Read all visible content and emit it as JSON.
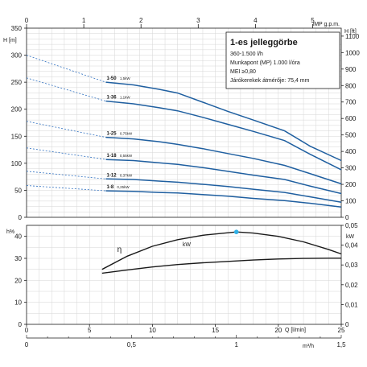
{
  "chart_data": [
    {
      "type": "line",
      "title": "1-es jelleggörbe",
      "info_lines": [
        "360-1.500 l/h",
        "Munkapont (MP) 1.000 l/óra",
        "MEI ≥0,80",
        "Járókerekek átmérője: 75,4 mm"
      ],
      "axes": {
        "top_label": "IMP g.p.m.",
        "top_ticks": [
          "0",
          "1",
          "2",
          "3",
          "4",
          "5"
        ],
        "left_label": "H [m]",
        "left_ticks": [
          "0",
          "50",
          "100",
          "150",
          "200",
          "250",
          "300",
          "350"
        ],
        "left_range": [
          0,
          350
        ],
        "right_label": "H [ft]",
        "right_ticks": [
          "0",
          "100",
          "200",
          "300",
          "400",
          "500",
          "600",
          "700",
          "800",
          "900",
          "1000",
          "1100"
        ],
        "x_range": [
          0,
          25
        ]
      },
      "series": [
        {
          "name": "1-50",
          "power": "1,5kW",
          "x": [
            6.3,
            8.5,
            10.5,
            12.0,
            14.0,
            16.0,
            18.0,
            20.5,
            22.5,
            25.0
          ],
          "values": [
            250,
            245,
            237,
            230,
            213,
            196,
            180,
            160,
            132,
            105
          ]
        },
        {
          "name": "1-36",
          "power": "1,1kW",
          "x": [
            6.3,
            8.5,
            10.5,
            12.0,
            14.0,
            16.0,
            18.0,
            20.5,
            22.5,
            25.0
          ],
          "values": [
            215,
            210,
            203,
            197,
            185,
            172,
            159,
            142,
            117,
            88
          ]
        },
        {
          "name": "1-25",
          "power": "0,75kW",
          "x": [
            6.3,
            8.5,
            10.5,
            12.0,
            14.0,
            16.0,
            18.0,
            20.5,
            22.5,
            25.0
          ],
          "values": [
            148,
            145,
            140,
            135,
            127,
            118,
            109,
            96,
            81,
            62
          ]
        },
        {
          "name": "1-18",
          "power": "0,55kW",
          "x": [
            6.3,
            8.5,
            10.5,
            12.0,
            14.0,
            16.0,
            18.0,
            20.5,
            22.5,
            25.0
          ],
          "values": [
            107,
            105,
            101,
            98,
            92,
            85,
            78,
            70,
            58,
            44
          ]
        },
        {
          "name": "1-12",
          "power": "0,37kW",
          "x": [
            6.3,
            8.5,
            10.5,
            12.0,
            14.0,
            16.0,
            18.0,
            20.5,
            22.5,
            25.0
          ],
          "values": [
            71,
            70,
            67,
            65,
            61,
            57,
            52,
            46,
            38,
            28
          ]
        },
        {
          "name": "1-8",
          "power": "0,25kW",
          "x": [
            6.3,
            8.5,
            10.5,
            12.0,
            14.0,
            16.0,
            18.0,
            20.5,
            22.5,
            25.0
          ],
          "values": [
            49,
            48,
            46,
            45,
            42,
            39,
            35,
            31,
            26,
            19
          ]
        }
      ]
    },
    {
      "type": "line",
      "axes": {
        "left_label": "h%",
        "left_ticks": [
          "0",
          "10",
          "20",
          "30",
          "40"
        ],
        "left_range": [
          0,
          45
        ],
        "right_label": "kW",
        "right_ticks": [
          "0",
          "0,01",
          "0,02",
          "0,03",
          "0,04",
          "0,05"
        ],
        "right_range": [
          0,
          0.05
        ],
        "x_label": "Q [l/min]",
        "x_ticks": [
          "0",
          "5",
          "10",
          "15",
          "20",
          "25"
        ],
        "x_range": [
          0,
          25
        ],
        "x2_label": "m³/h",
        "x2_ticks": [
          "0",
          "0,5",
          "1",
          "1,5"
        ]
      },
      "series": [
        {
          "name": "η",
          "axis": "left",
          "x": [
            6.0,
            8.0,
            10.0,
            12.0,
            14.0,
            16.67,
            18.0,
            20.0,
            22.0,
            24.0,
            25.0
          ],
          "values": [
            25,
            31,
            35.5,
            38.5,
            40.5,
            42,
            41.5,
            40,
            37.5,
            34,
            32
          ]
        },
        {
          "name": "kW",
          "axis": "right",
          "x": [
            6.0,
            8.0,
            10.0,
            12.0,
            14.0,
            16.0,
            18.0,
            20.0,
            22.0,
            24.0,
            25.0
          ],
          "values": [
            0.0258,
            0.0275,
            0.029,
            0.0302,
            0.0311,
            0.0318,
            0.0325,
            0.033,
            0.0333,
            0.0334,
            0.0334
          ]
        }
      ],
      "duty_point": {
        "x": 16.67,
        "y": 42
      },
      "marker_color": "#2fb0e6"
    }
  ],
  "colors": {
    "curve": "#1f5fa0",
    "dash": "#2f70c0",
    "axis": "#1a1a1a",
    "grid": "#d6d6d6"
  }
}
